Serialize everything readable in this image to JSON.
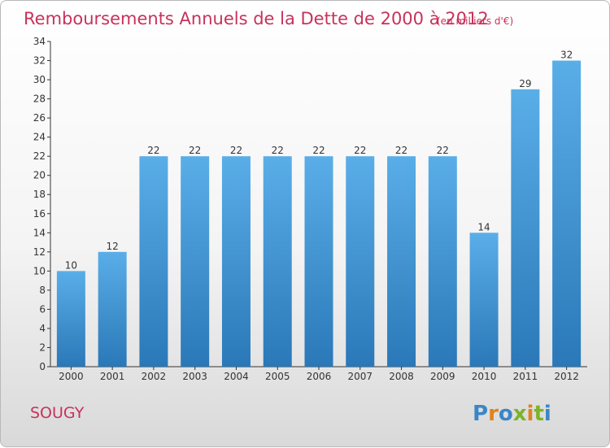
{
  "chart_data": {
    "type": "bar",
    "title": "Remboursements Annuels de la Dette de 2000 à 2012",
    "subtitle": "(en milliers d'€)",
    "categories": [
      "2000",
      "2001",
      "2002",
      "2003",
      "2004",
      "2005",
      "2006",
      "2007",
      "2008",
      "2009",
      "2010",
      "2011",
      "2012"
    ],
    "values": [
      10,
      12,
      22,
      22,
      22,
      22,
      22,
      22,
      22,
      22,
      14,
      29,
      32
    ],
    "ylim": [
      0,
      34
    ],
    "yticks": [
      0,
      2,
      4,
      6,
      8,
      10,
      12,
      14,
      16,
      18,
      20,
      22,
      24,
      26,
      28,
      30,
      32,
      34
    ],
    "grid": false,
    "bar_color_top": "#5aaee8",
    "bar_color_bottom": "#2a78b8"
  },
  "commune": "SOUGY",
  "brand": {
    "letters": [
      "P",
      "r",
      "o",
      "x",
      "i",
      "t",
      "i"
    ],
    "colors": [
      "#3a86c8",
      "#e0831b",
      "#3a86c8",
      "#7cb32a",
      "#e0831b",
      "#7cb32a",
      "#3a86c8"
    ]
  },
  "colors": {
    "title": "#c8325a",
    "axis": "#333333"
  }
}
